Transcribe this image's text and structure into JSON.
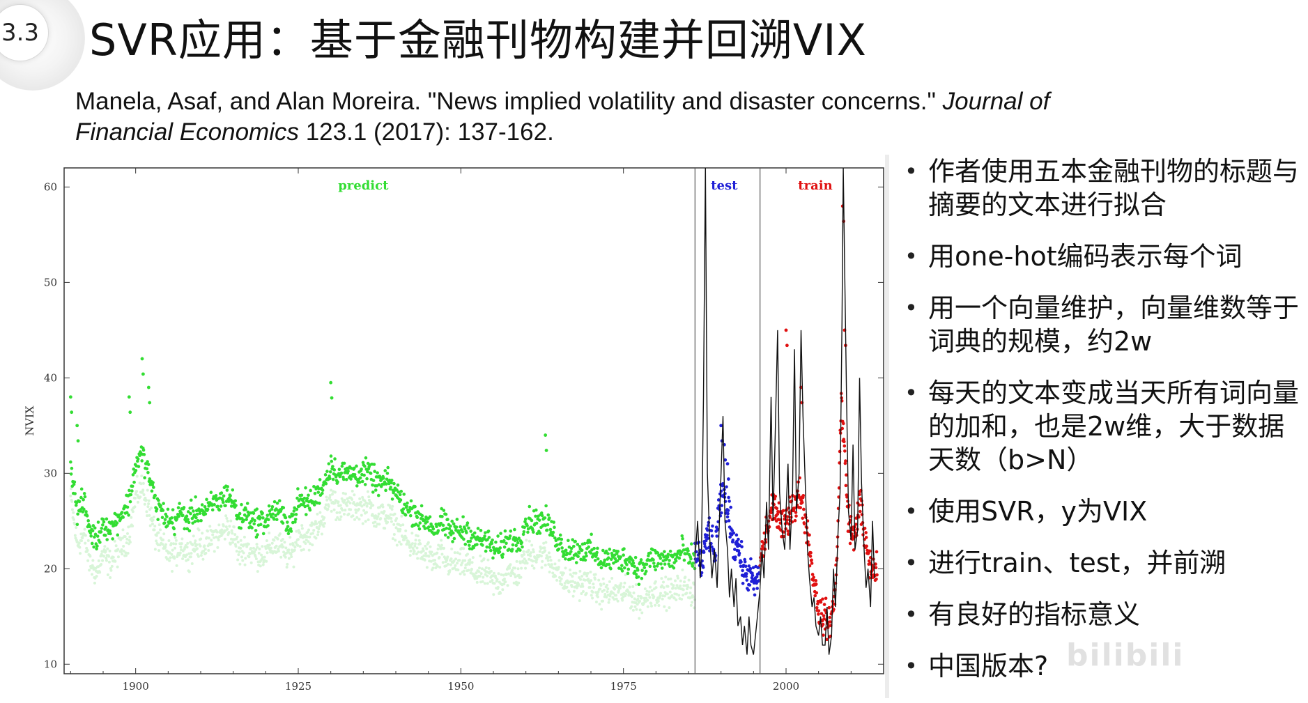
{
  "slide": {
    "section_number": "3.3",
    "title": "SVR应用：基于金融刊物构建并回溯VIX",
    "citation": {
      "part1": "Manela, Asaf, and Alan Moreira. \"News implied volatility and disaster concerns.\" ",
      "journal1": "Journal of",
      "journal2": "Financial Economics",
      "part2": " 123.1 (2017): 137-162."
    },
    "bullets": [
      "作者使用五本金融刊物的标题与摘要的文本进行拟合",
      "用one-hot编码表示每个词",
      "用一个向量维护，向量维数等于词典的规模，约2w",
      "每天的文本变成当天所有词向量的加和，也是2w维，大于数据天数（b>N）",
      "使用SVR，y为VIX",
      "进行train、test，并前溯",
      "有良好的指标意义",
      "中国版本?"
    ],
    "watermark": "bilibili"
  },
  "colors": {
    "predict": "#33dd33",
    "predict_light": "#d8f5d8",
    "test": "#1f1fd6",
    "train": "#e01010",
    "line": "#111111"
  },
  "chart_data": {
    "type": "scatter",
    "xlabel": "",
    "ylabel": "NVIX",
    "xlim": [
      1889,
      2015
    ],
    "ylim": [
      9,
      62
    ],
    "xticks": [
      1900,
      1925,
      1950,
      1975,
      2000
    ],
    "yticks": [
      10,
      20,
      30,
      40,
      50,
      60
    ],
    "region_labels": [
      "predict",
      "test",
      "train"
    ],
    "dividers": [
      1986,
      1996
    ],
    "series": [
      {
        "name": "predict",
        "region": [
          1890,
          1986
        ],
        "points": [
          [
            1890,
            31
          ],
          [
            1891,
            26
          ],
          [
            1892,
            27
          ],
          [
            1893,
            24
          ],
          [
            1894,
            23
          ],
          [
            1895,
            25
          ],
          [
            1896,
            24
          ],
          [
            1897,
            25
          ],
          [
            1898,
            26
          ],
          [
            1899,
            27
          ],
          [
            1900,
            31
          ],
          [
            1901,
            32
          ],
          [
            1902,
            30
          ],
          [
            1903,
            27
          ],
          [
            1904,
            26
          ],
          [
            1905,
            25
          ],
          [
            1906,
            25
          ],
          [
            1907,
            26
          ],
          [
            1908,
            25
          ],
          [
            1909,
            26
          ],
          [
            1910,
            26
          ],
          [
            1911,
            26
          ],
          [
            1912,
            27
          ],
          [
            1913,
            27
          ],
          [
            1914,
            28
          ],
          [
            1915,
            27
          ],
          [
            1916,
            25
          ],
          [
            1917,
            26
          ],
          [
            1918,
            25
          ],
          [
            1919,
            25
          ],
          [
            1920,
            25
          ],
          [
            1921,
            26
          ],
          [
            1922,
            26
          ],
          [
            1923,
            25
          ],
          [
            1924,
            25
          ],
          [
            1925,
            27
          ],
          [
            1926,
            27
          ],
          [
            1927,
            27
          ],
          [
            1928,
            28
          ],
          [
            1929,
            29
          ],
          [
            1930,
            31
          ],
          [
            1931,
            30
          ],
          [
            1932,
            30
          ],
          [
            1933,
            30
          ],
          [
            1934,
            30
          ],
          [
            1935,
            30
          ],
          [
            1936,
            30
          ],
          [
            1937,
            29
          ],
          [
            1938,
            29
          ],
          [
            1939,
            29
          ],
          [
            1940,
            28
          ],
          [
            1941,
            27
          ],
          [
            1942,
            26
          ],
          [
            1943,
            26
          ],
          [
            1944,
            25
          ],
          [
            1945,
            25
          ],
          [
            1946,
            24
          ],
          [
            1947,
            25
          ],
          [
            1948,
            24
          ],
          [
            1949,
            24
          ],
          [
            1950,
            24
          ],
          [
            1951,
            24
          ],
          [
            1952,
            23
          ],
          [
            1953,
            23
          ],
          [
            1954,
            23
          ],
          [
            1955,
            22
          ],
          [
            1956,
            22
          ],
          [
            1957,
            23
          ],
          [
            1958,
            23
          ],
          [
            1959,
            23
          ],
          [
            1960,
            25
          ],
          [
            1961,
            25
          ],
          [
            1962,
            25
          ],
          [
            1963,
            25
          ],
          [
            1964,
            24
          ],
          [
            1965,
            23
          ],
          [
            1966,
            22
          ],
          [
            1967,
            22
          ],
          [
            1968,
            22
          ],
          [
            1969,
            22
          ],
          [
            1970,
            22
          ],
          [
            1971,
            21
          ],
          [
            1972,
            21
          ],
          [
            1973,
            21
          ],
          [
            1974,
            21
          ],
          [
            1975,
            21
          ],
          [
            1976,
            21
          ],
          [
            1977,
            20
          ],
          [
            1978,
            20
          ],
          [
            1979,
            21
          ],
          [
            1980,
            21
          ],
          [
            1981,
            21
          ],
          [
            1982,
            21
          ],
          [
            1983,
            21
          ],
          [
            1984,
            22
          ],
          [
            1985,
            21
          ]
        ],
        "spikes": [
          [
            1890,
            38
          ],
          [
            1891,
            35
          ],
          [
            1901,
            42
          ],
          [
            1902,
            39
          ],
          [
            1899,
            38
          ],
          [
            1930,
            39.5
          ],
          [
            1963,
            34
          ]
        ]
      },
      {
        "name": "test",
        "region": [
          1986,
          1996
        ],
        "points": [
          [
            1986,
            21
          ],
          [
            1986.5,
            22
          ],
          [
            1987,
            20
          ],
          [
            1987.5,
            22
          ],
          [
            1988,
            24
          ],
          [
            1988.5,
            23
          ],
          [
            1989,
            21
          ],
          [
            1989.5,
            25
          ],
          [
            1990,
            27
          ],
          [
            1990.5,
            28
          ],
          [
            1991,
            26
          ],
          [
            1991.5,
            25
          ],
          [
            1992,
            22
          ],
          [
            1992.5,
            23
          ],
          [
            1993,
            21
          ],
          [
            1993.5,
            20
          ],
          [
            1994,
            19
          ],
          [
            1994.5,
            20
          ],
          [
            1995,
            18
          ],
          [
            1995.5,
            19
          ]
        ],
        "spikes": [
          [
            1990,
            35
          ],
          [
            1990.5,
            33
          ],
          [
            1991,
            31
          ]
        ]
      },
      {
        "name": "train",
        "region": [
          1996,
          2014
        ],
        "points": [
          [
            1996,
            21
          ],
          [
            1996.5,
            22
          ],
          [
            1997,
            24
          ],
          [
            1997.5,
            25
          ],
          [
            1998,
            27
          ],
          [
            1998.5,
            26
          ],
          [
            1999,
            25
          ],
          [
            1999.5,
            24
          ],
          [
            2000,
            25
          ],
          [
            2000.5,
            26
          ],
          [
            2001,
            27
          ],
          [
            2001.5,
            26
          ],
          [
            2002,
            28
          ],
          [
            2002.5,
            27
          ],
          [
            2003,
            25
          ],
          [
            2003.5,
            23
          ],
          [
            2004,
            20
          ],
          [
            2004.5,
            18
          ],
          [
            2005,
            16
          ],
          [
            2005.5,
            15
          ],
          [
            2006,
            15
          ],
          [
            2006.5,
            14
          ],
          [
            2007,
            15
          ],
          [
            2007.5,
            17
          ],
          [
            2008,
            25
          ],
          [
            2008.5,
            38
          ],
          [
            2009,
            32
          ],
          [
            2009.5,
            26
          ],
          [
            2010,
            24
          ],
          [
            2010.5,
            23
          ],
          [
            2011,
            26
          ],
          [
            2011.5,
            27
          ],
          [
            2012,
            23
          ],
          [
            2012.5,
            22
          ],
          [
            2013,
            20
          ]
        ],
        "spikes": [
          [
            2008.7,
            58
          ],
          [
            2000,
            45
          ],
          [
            2002.3,
            39
          ],
          [
            2009,
            45
          ]
        ]
      },
      {
        "name": "VIX",
        "type": "line",
        "points": [
          [
            1986,
            21
          ],
          [
            1986.4,
            25
          ],
          [
            1986.8,
            19
          ],
          [
            1987,
            22
          ],
          [
            1987.3,
            38
          ],
          [
            1987.6,
            62
          ],
          [
            1987.9,
            30
          ],
          [
            1988.2,
            24
          ],
          [
            1988.6,
            19
          ],
          [
            1989,
            22
          ],
          [
            1989.4,
            18
          ],
          [
            1989.8,
            26
          ],
          [
            1990,
            30
          ],
          [
            1990.3,
            36
          ],
          [
            1990.6,
            25
          ],
          [
            1991,
            22
          ],
          [
            1991.3,
            17
          ],
          [
            1991.6,
            20
          ],
          [
            1992,
            16
          ],
          [
            1992.3,
            19
          ],
          [
            1992.6,
            14
          ],
          [
            1993,
            15
          ],
          [
            1993.3,
            12
          ],
          [
            1993.6,
            14
          ],
          [
            1994,
            11
          ],
          [
            1994.3,
            15
          ],
          [
            1994.6,
            12
          ],
          [
            1995,
            11
          ],
          [
            1995.3,
            13
          ],
          [
            1995.6,
            15
          ],
          [
            1996,
            18
          ],
          [
            1996.3,
            22
          ],
          [
            1996.6,
            19
          ],
          [
            1997,
            27
          ],
          [
            1997.3,
            22
          ],
          [
            1997.7,
            38
          ],
          [
            1998,
            25
          ],
          [
            1998.3,
            33
          ],
          [
            1998.7,
            45
          ],
          [
            1999,
            28
          ],
          [
            1999.4,
            24
          ],
          [
            1999.8,
            22
          ],
          [
            2000,
            26
          ],
          [
            2000.3,
            31
          ],
          [
            2000.6,
            22
          ],
          [
            2001,
            28
          ],
          [
            2001.3,
            43
          ],
          [
            2001.6,
            26
          ],
          [
            2002,
            30
          ],
          [
            2002.3,
            45
          ],
          [
            2002.6,
            36
          ],
          [
            2003,
            28
          ],
          [
            2003.3,
            22
          ],
          [
            2003.6,
            19
          ],
          [
            2004,
            16
          ],
          [
            2004.3,
            17
          ],
          [
            2004.6,
            14
          ],
          [
            2005,
            13
          ],
          [
            2005.3,
            15
          ],
          [
            2005.6,
            12
          ],
          [
            2006,
            12
          ],
          [
            2006.3,
            16
          ],
          [
            2006.6,
            11
          ],
          [
            2007,
            13
          ],
          [
            2007.3,
            20
          ],
          [
            2007.6,
            16
          ],
          [
            2008,
            24
          ],
          [
            2008.3,
            28
          ],
          [
            2008.6,
            46
          ],
          [
            2008.8,
            62
          ],
          [
            2009,
            52
          ],
          [
            2009.3,
            38
          ],
          [
            2009.6,
            26
          ],
          [
            2010,
            23
          ],
          [
            2010.3,
            33
          ],
          [
            2010.6,
            22
          ],
          [
            2011,
            24
          ],
          [
            2011.3,
            40
          ],
          [
            2011.6,
            29
          ],
          [
            2012,
            22
          ],
          [
            2012.3,
            18
          ],
          [
            2012.6,
            20
          ],
          [
            2013,
            16
          ],
          [
            2013.3,
            25
          ],
          [
            2013.6,
            19
          ]
        ]
      }
    ]
  }
}
